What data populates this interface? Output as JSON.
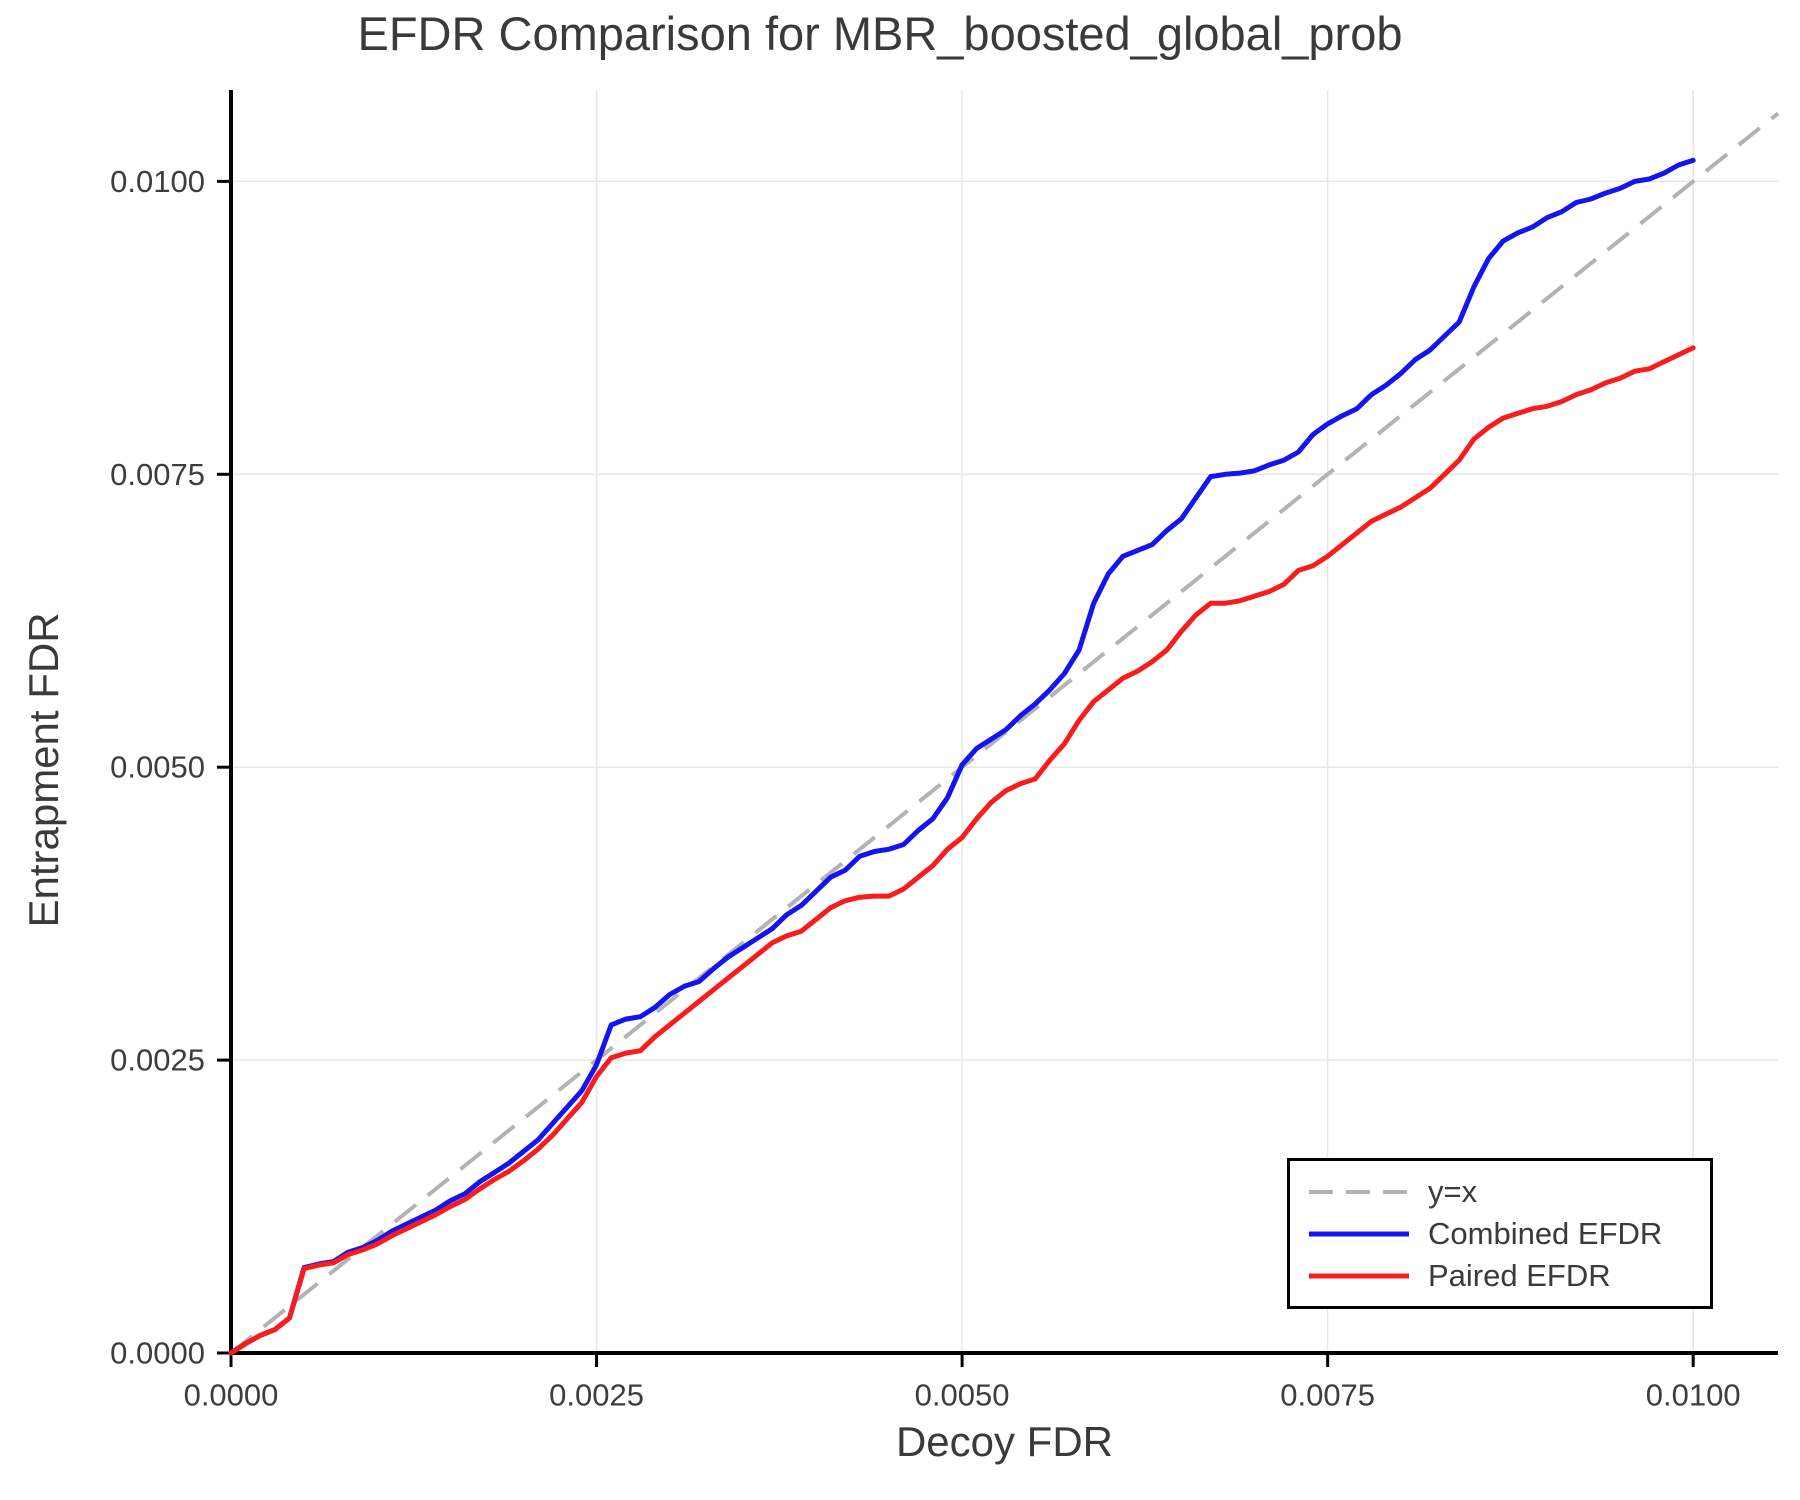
{
  "title": "EFDR Comparison for MBR_boosted_global_prob",
  "colors": {
    "combined_line": "#1414f0",
    "paired_line": "#f81c1c",
    "reference_line": "#b3b3b3",
    "grid": "#e7e7e7",
    "spine": "#000000",
    "text": "#3d3d3d"
  },
  "legend": {
    "position": "lower right",
    "items": [
      {
        "label": "y=x",
        "color": "#b3b3b3",
        "style": "dashed"
      },
      {
        "label": "Combined EFDR",
        "color": "#1414f0",
        "style": "solid"
      },
      {
        "label": "Paired EFDR",
        "color": "#f81c1c",
        "style": "solid"
      }
    ]
  },
  "chart_data": {
    "type": "line",
    "title": "EFDR Comparison for MBR_boosted_global_prob",
    "xlabel": "Decoy FDR",
    "ylabel": "Entrapment FDR",
    "xlim": [
      0,
      0.01058
    ],
    "ylim": [
      0,
      0.01078
    ],
    "grid": true,
    "x_ticks": [
      0,
      0.0025,
      0.005,
      0.0075,
      0.01
    ],
    "y_ticks": [
      0,
      0.0025,
      0.005,
      0.0075,
      0.01
    ],
    "x_tick_labels": [
      "0.0000",
      "0.0025",
      "0.0050",
      "0.0075",
      "0.0100"
    ],
    "y_tick_labels": [
      "0.0000",
      "0.0025",
      "0.0050",
      "0.0075",
      "0.0100"
    ],
    "reference_line": {
      "label": "y=x",
      "type": "diagonal",
      "style": "dashed",
      "color": "#b3b3b3"
    },
    "x_start": 0,
    "x_step": 0.0001,
    "series": [
      {
        "name": "Combined EFDR",
        "color": "#1414f0",
        "values": [
          0,
          8e-05,
          0.00015,
          0.0002,
          0.0003,
          0.00073,
          0.00076,
          0.00078,
          0.00086,
          0.0009,
          0.00096,
          0.00104,
          0.0011,
          0.00116,
          0.00122,
          0.0013,
          0.00136,
          0.00146,
          0.00154,
          0.00162,
          0.00172,
          0.00182,
          0.00196,
          0.0021,
          0.00224,
          0.00246,
          0.0028,
          0.00285,
          0.00287,
          0.00295,
          0.00306,
          0.00313,
          0.00317,
          0.00328,
          0.00338,
          0.00346,
          0.00354,
          0.00362,
          0.00374,
          0.00382,
          0.00394,
          0.00406,
          0.00412,
          0.00424,
          0.00428,
          0.0043,
          0.00434,
          0.00446,
          0.00456,
          0.00474,
          0.00502,
          0.00516,
          0.00524,
          0.00532,
          0.00544,
          0.00554,
          0.00566,
          0.0058,
          0.006,
          0.0064,
          0.00665,
          0.0068,
          0.00685,
          0.0069,
          0.00702,
          0.00712,
          0.0073,
          0.00748,
          0.0075,
          0.00751,
          0.00753,
          0.00758,
          0.00762,
          0.00769,
          0.00784,
          0.00793,
          0.008,
          0.00806,
          0.00818,
          0.00826,
          0.00836,
          0.00848,
          0.00856,
          0.00868,
          0.0088,
          0.0091,
          0.00934,
          0.00949,
          0.00956,
          0.00961,
          0.00969,
          0.00974,
          0.00982,
          0.00985,
          0.0099,
          0.00994,
          0.01,
          0.01002,
          0.01007,
          0.01014,
          0.01018
        ]
      },
      {
        "name": "Paired EFDR",
        "color": "#f81c1c",
        "values": [
          0,
          8e-05,
          0.00015,
          0.0002,
          0.0003,
          0.00072,
          0.00075,
          0.00077,
          0.00084,
          0.00088,
          0.00093,
          0.001,
          0.00106,
          0.00112,
          0.00118,
          0.00125,
          0.00131,
          0.0014,
          0.00148,
          0.00155,
          0.00164,
          0.00174,
          0.00186,
          0.002,
          0.00214,
          0.00236,
          0.00252,
          0.00256,
          0.00258,
          0.0027,
          0.0028,
          0.0029,
          0.003,
          0.0031,
          0.0032,
          0.0033,
          0.0034,
          0.0035,
          0.00356,
          0.0036,
          0.0037,
          0.0038,
          0.00386,
          0.00389,
          0.0039,
          0.0039,
          0.00396,
          0.00406,
          0.00416,
          0.0043,
          0.0044,
          0.00456,
          0.0047,
          0.0048,
          0.00486,
          0.0049,
          0.00506,
          0.0052,
          0.0054,
          0.00556,
          0.00566,
          0.00576,
          0.00582,
          0.0059,
          0.006,
          0.00616,
          0.0063,
          0.0064,
          0.0064,
          0.00642,
          0.00646,
          0.0065,
          0.00656,
          0.00668,
          0.00672,
          0.0068,
          0.0069,
          0.007,
          0.0071,
          0.00716,
          0.00722,
          0.0073,
          0.00738,
          0.0075,
          0.00762,
          0.0078,
          0.0079,
          0.00798,
          0.00802,
          0.00806,
          0.00808,
          0.00812,
          0.00818,
          0.00822,
          0.00828,
          0.00832,
          0.00838,
          0.0084,
          0.00846,
          0.00852,
          0.00858
        ]
      }
    ]
  }
}
